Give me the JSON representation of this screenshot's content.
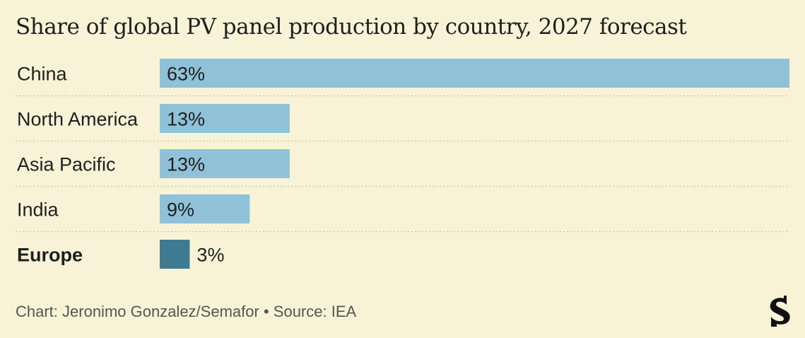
{
  "title": "Share of global PV panel production by country, 2027 forecast",
  "footer": {
    "credit": "Chart: Jeronimo Gonzalez/Semafor",
    "separator": "•",
    "source": "Source: IEA"
  },
  "logo_icon": "semafor-s-logo",
  "colors": {
    "background": "#f8f3d6",
    "bar": "#8fc1d8",
    "bar_highlight": "#3f7a93",
    "gridline": "#c9c4aa"
  },
  "chart_data": {
    "type": "bar",
    "orientation": "horizontal",
    "title": "Share of global PV panel production by country, 2027 forecast",
    "categories": [
      "China",
      "North America",
      "Asia Pacific",
      "India",
      "Europe"
    ],
    "values": [
      63,
      13,
      13,
      9,
      3
    ],
    "value_labels": [
      "63%",
      "13%",
      "13%",
      "9%",
      "3%"
    ],
    "highlight": "Europe",
    "xlim": [
      0,
      63
    ],
    "grid": false,
    "legend": "none"
  }
}
